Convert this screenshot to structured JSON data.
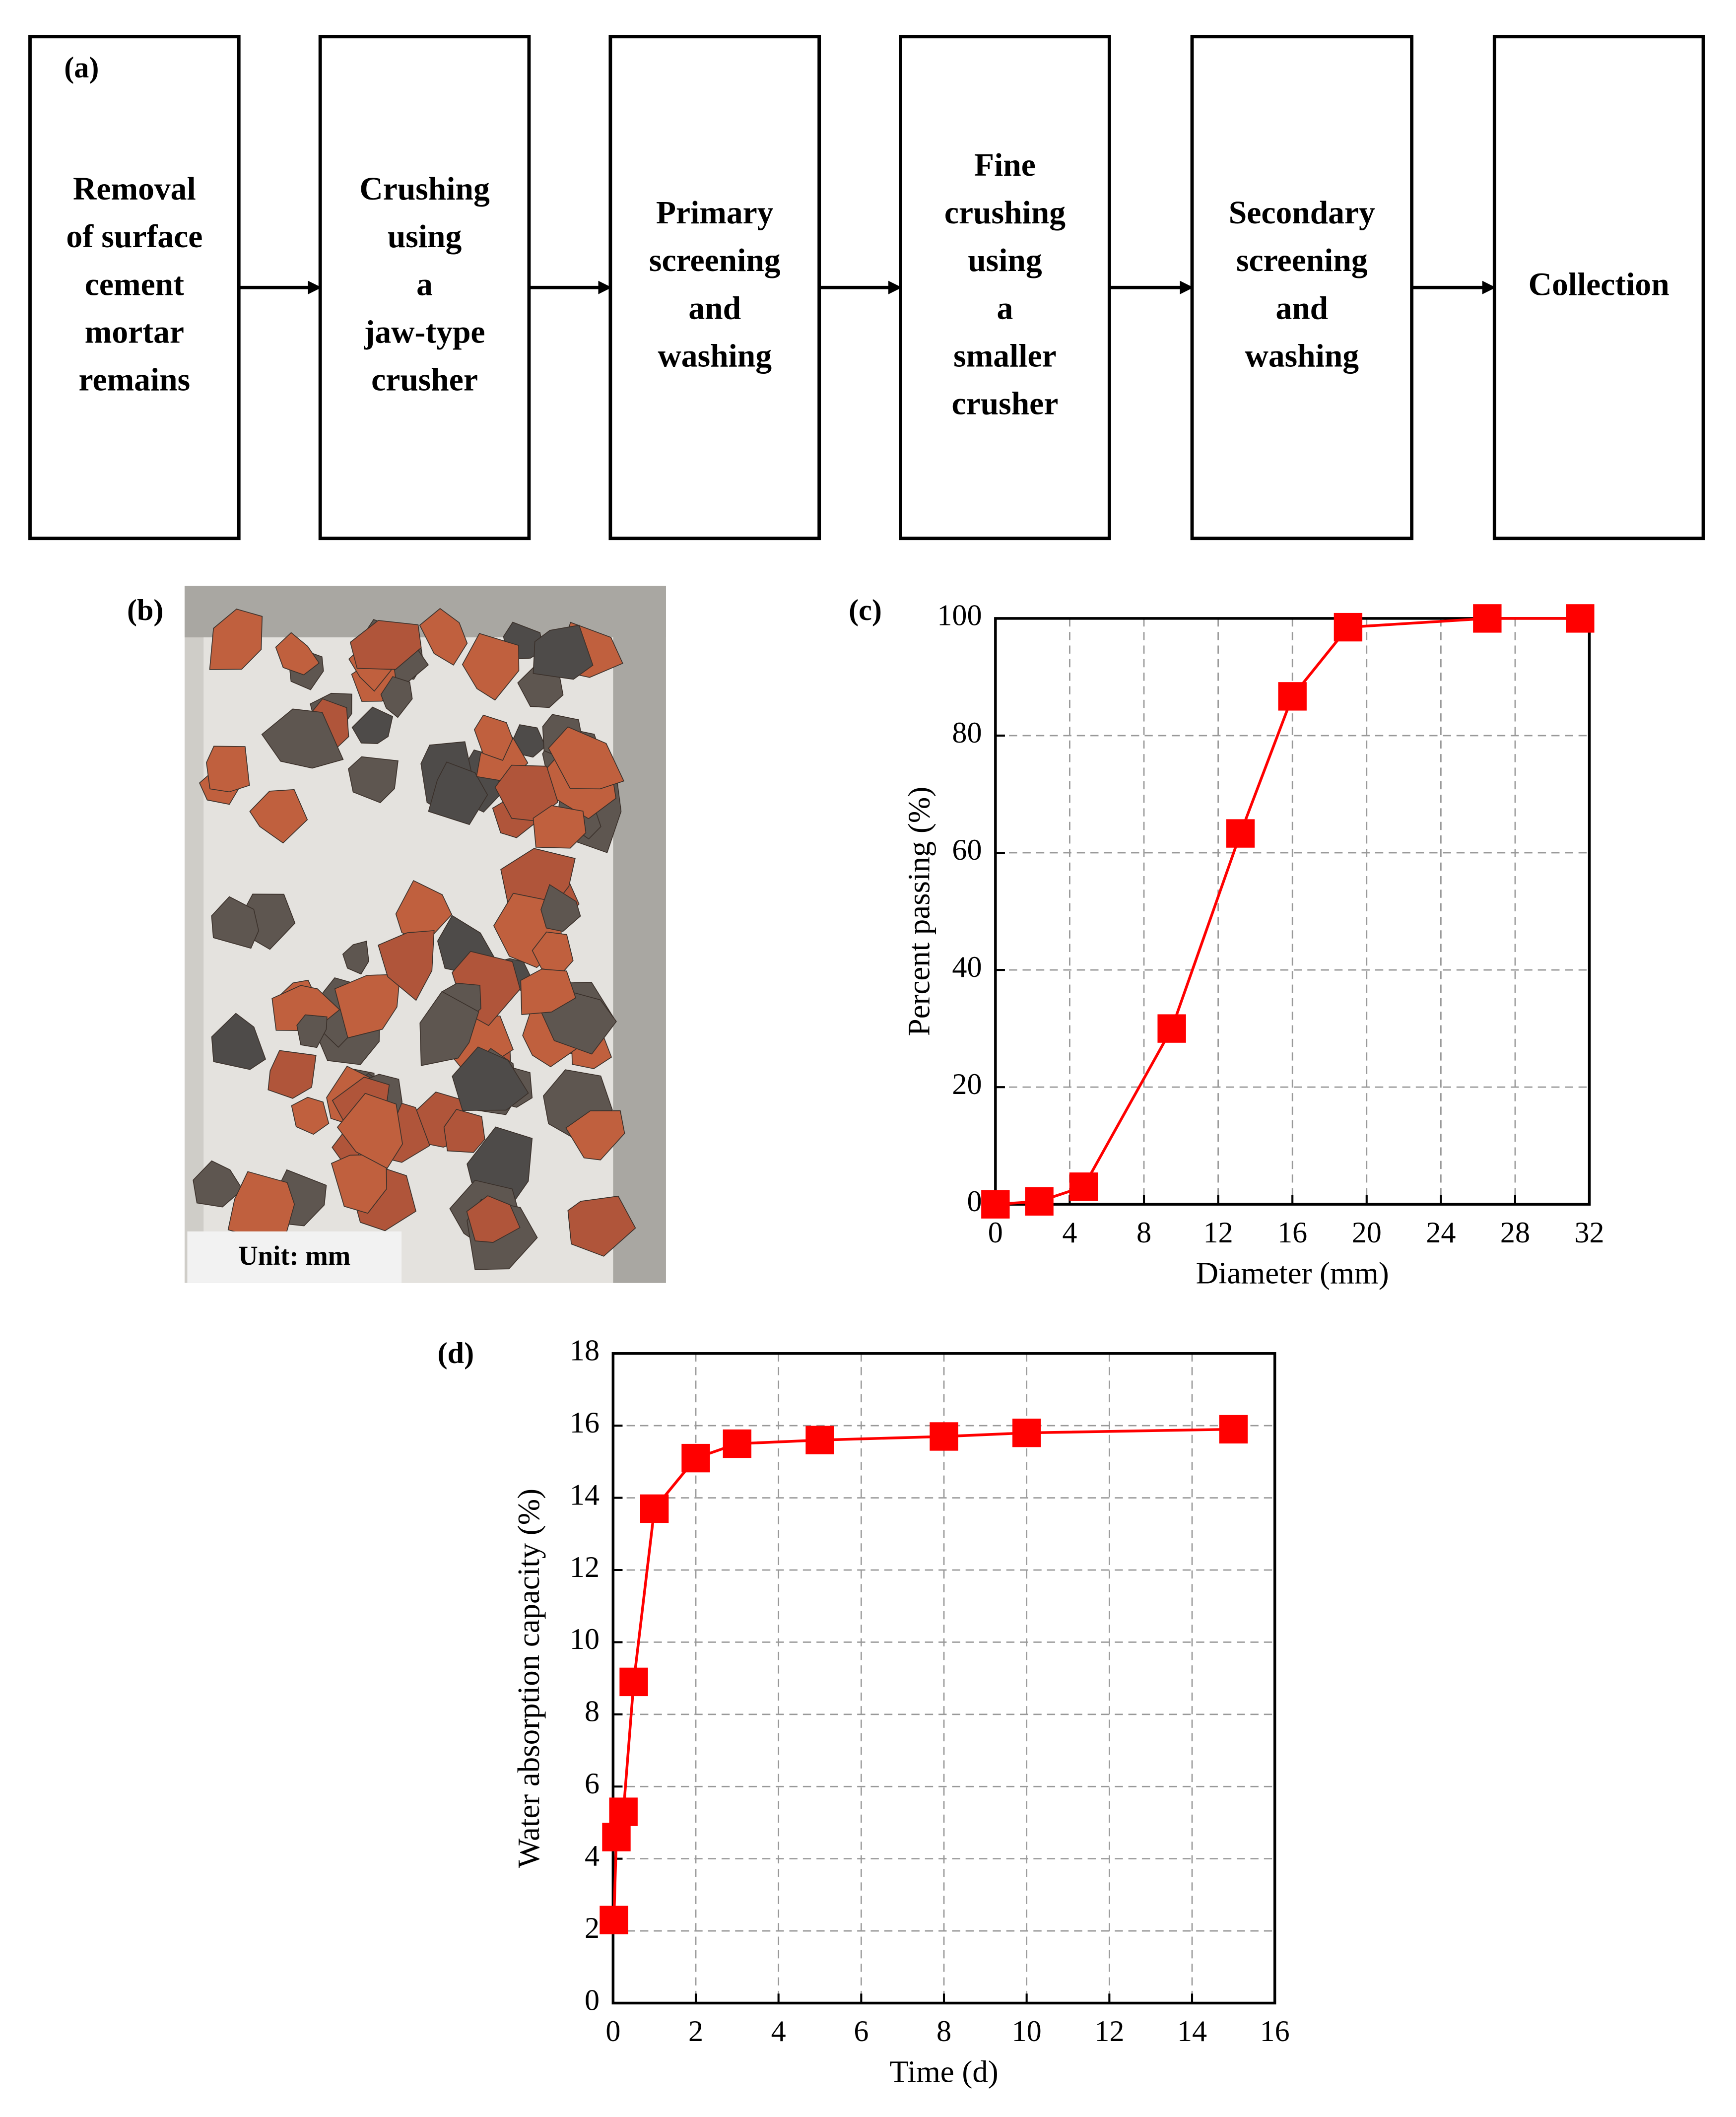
{
  "flowchart": {
    "label": "(a)",
    "steps": [
      [
        "Removal",
        "of surface",
        "cement",
        "mortar",
        "remains"
      ],
      [
        "Crushing",
        "using",
        "a",
        "jaw-type",
        "crusher"
      ],
      [
        "Primary",
        "screening",
        "and",
        "washing"
      ],
      [
        "Fine",
        "crushing",
        "using",
        "a",
        "smaller",
        "crusher"
      ],
      [
        "Secondary",
        "screening",
        "and",
        "washing"
      ],
      [
        "Collection"
      ]
    ]
  },
  "photo": {
    "label": "(b)",
    "unit_label": "Unit: mm"
  },
  "chart_data": [
    {
      "type": "line",
      "label": "(c)",
      "x_label": "Diameter (mm)",
      "y_label": "Percent passing (%)",
      "x": [
        0,
        2.36,
        4.75,
        9.5,
        13.2,
        16,
        19,
        26.5,
        31.5
      ],
      "values": [
        0,
        0.5,
        3,
        30,
        63.3,
        86.7,
        98.5,
        100,
        100
      ],
      "color": "#ff0000",
      "marker": "square",
      "xlim": [
        0,
        32
      ],
      "xticks": [
        0,
        4,
        8,
        12,
        16,
        20,
        24,
        28,
        32
      ],
      "ylim": [
        0,
        100
      ],
      "yticks": [
        0,
        20,
        40,
        60,
        80,
        100
      ],
      "grid": true
    },
    {
      "type": "line",
      "label": "(d)",
      "x_label": "Time (d)",
      "y_label": "Water absorption capacity (%)",
      "x": [
        0.02,
        0.08,
        0.25,
        0.5,
        1,
        2,
        3,
        5,
        8,
        10,
        15
      ],
      "values": [
        2.3,
        4.6,
        5.3,
        8.9,
        13.7,
        15.1,
        15.5,
        15.6,
        15.7,
        15.8,
        15.9
      ],
      "color": "#ff0000",
      "marker": "square",
      "xlim": [
        0,
        16
      ],
      "xticks": [
        0,
        2,
        4,
        6,
        8,
        10,
        12,
        14,
        16
      ],
      "ylim": [
        0,
        18
      ],
      "yticks": [
        0,
        2,
        4,
        6,
        8,
        10,
        12,
        14,
        16,
        18
      ],
      "grid": true
    }
  ]
}
